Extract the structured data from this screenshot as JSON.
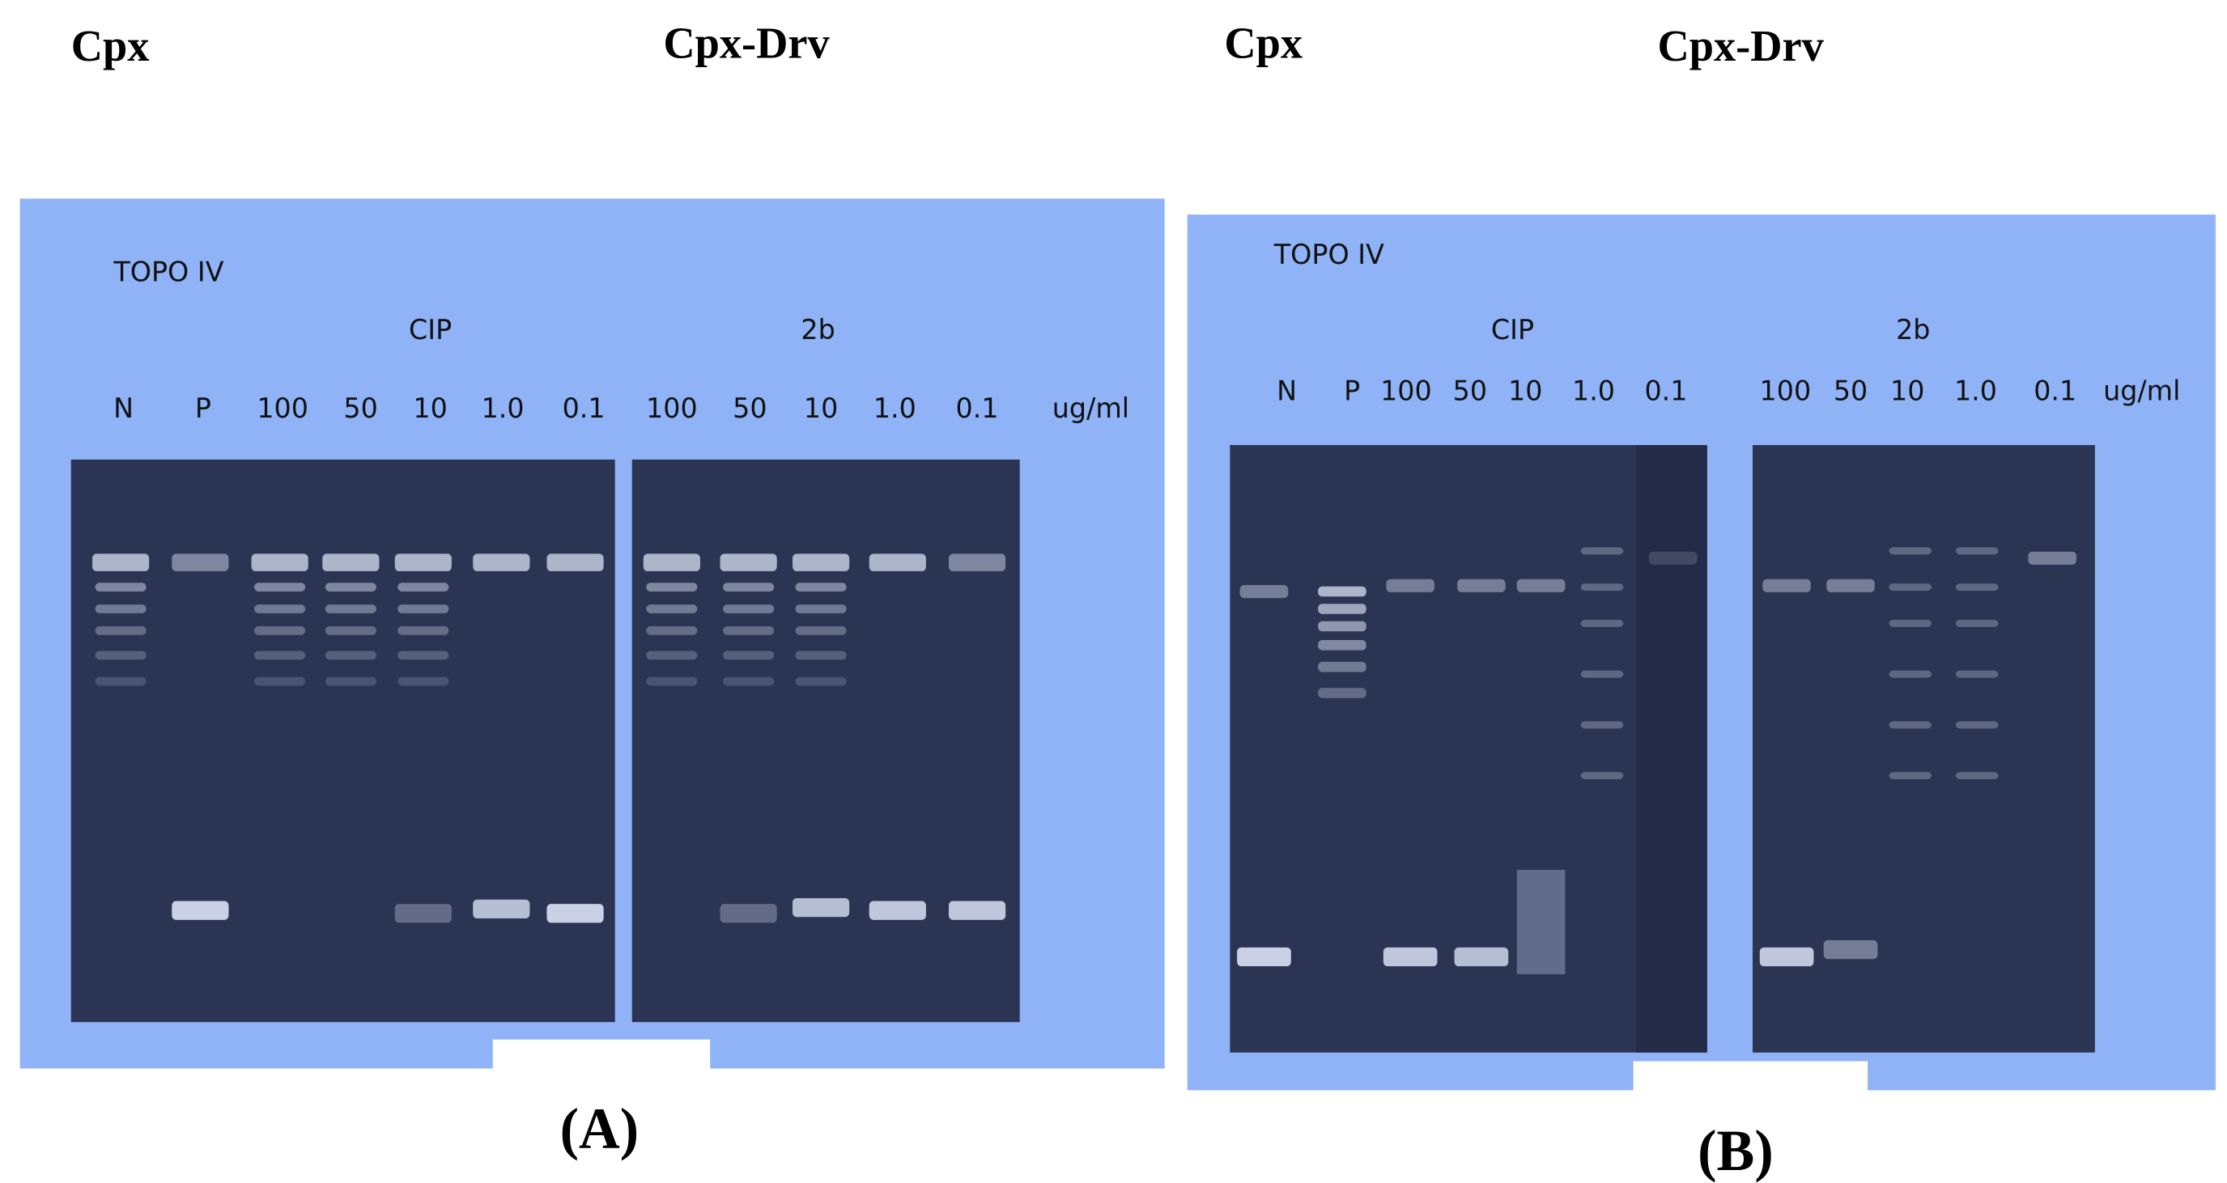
{
  "panels": [
    {
      "header_left": "Cpx",
      "header_right": "Cpx-Drv",
      "enzyme": "TOPO IV",
      "group_left": "CIP",
      "group_right": "2b",
      "lanes": [
        "N",
        "P",
        "100",
        "50",
        "10",
        "1.0",
        "0.1",
        "100",
        "50",
        "10",
        "1.0",
        "0.1"
      ],
      "unit": "ug/ml",
      "label": "(A)"
    },
    {
      "header_left": "Cpx",
      "header_right": "Cpx-Drv",
      "enzyme": "TOPO IV",
      "group_left": "CIP",
      "group_right": "2b",
      "lanes": [
        "N",
        "P",
        "100",
        "50",
        "10",
        "1.0",
        "0.1",
        "100",
        "50",
        "10",
        "1.0",
        "0.1"
      ],
      "unit": "ug/ml",
      "label": "(B)"
    }
  ]
}
